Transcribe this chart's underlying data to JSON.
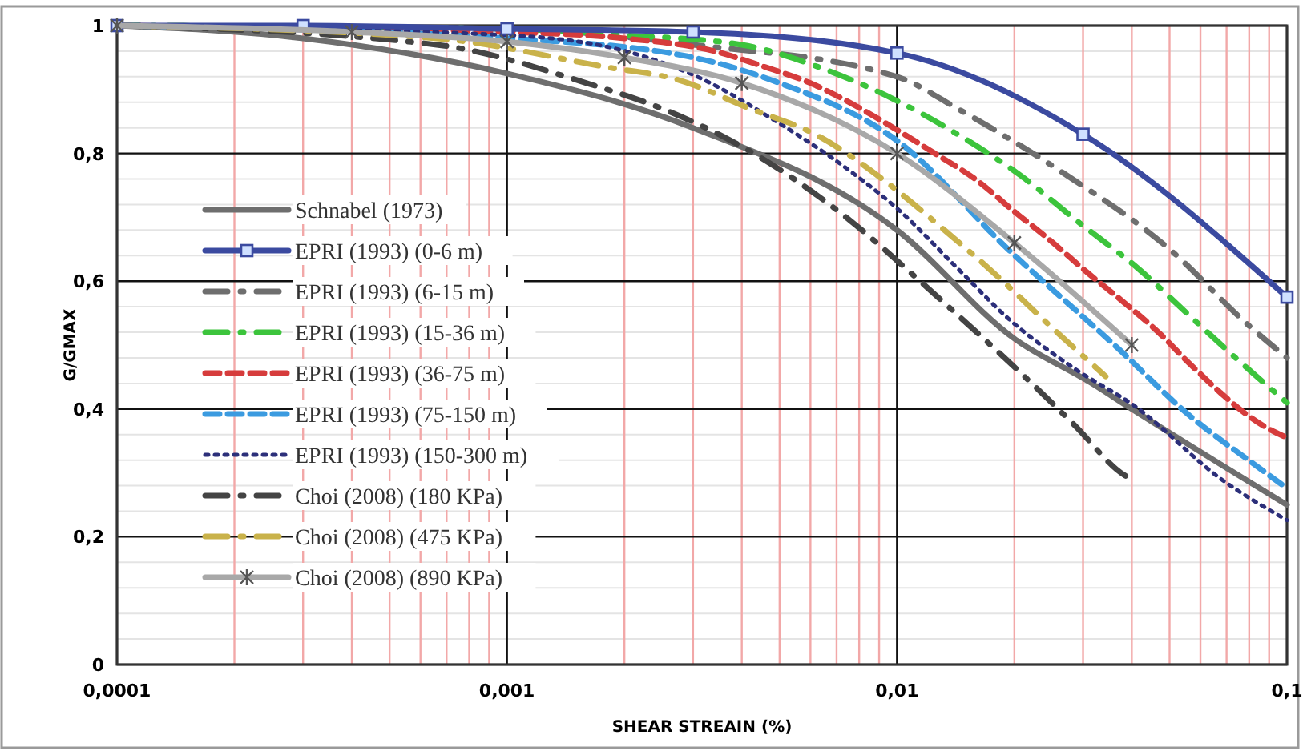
{
  "chart_data": {
    "type": "line",
    "xlabel": "SHEAR STREAIN (%)",
    "ylabel": "G/GMAX",
    "log": "x",
    "grid": true,
    "legend": "left",
    "xlim": [
      0.0001,
      0.1
    ],
    "xticks": [
      {
        "value": 0.0001,
        "label": "0,0001"
      },
      {
        "value": 0.0002,
        "label": null
      },
      {
        "value": 0.0003,
        "label": null
      },
      {
        "value": 0.0004,
        "label": null
      },
      {
        "value": 0.0005,
        "label": null
      },
      {
        "value": 0.0006,
        "label": null
      },
      {
        "value": 0.0007,
        "label": null
      },
      {
        "value": 0.0008,
        "label": null
      },
      {
        "value": 0.0009,
        "label": null
      },
      {
        "value": 0.001,
        "label": "0,001"
      },
      {
        "value": 0.002,
        "label": null
      },
      {
        "value": 0.003,
        "label": null
      },
      {
        "value": 0.004,
        "label": null
      },
      {
        "value": 0.005,
        "label": null
      },
      {
        "value": 0.006,
        "label": null
      },
      {
        "value": 0.007,
        "label": null
      },
      {
        "value": 0.008,
        "label": null
      },
      {
        "value": 0.009,
        "label": null
      },
      {
        "value": 0.01,
        "label": "0,01"
      },
      {
        "value": 0.02,
        "label": null
      },
      {
        "value": 0.03,
        "label": null
      },
      {
        "value": 0.04,
        "label": null
      },
      {
        "value": 0.05,
        "label": null
      },
      {
        "value": 0.06,
        "label": null
      },
      {
        "value": 0.07,
        "label": null
      },
      {
        "value": 0.08,
        "label": null
      },
      {
        "value": 0.09,
        "label": null
      },
      {
        "value": 0.1,
        "label": "0,1"
      }
    ],
    "ylim": [
      0,
      1
    ],
    "yticks": [
      0,
      {
        "value": 0.04,
        "label": null
      },
      {
        "value": 0.08,
        "label": null
      },
      {
        "value": 0.12,
        "label": null
      },
      {
        "value": 0.16,
        "label": null
      },
      {
        "value": 0.2,
        "label": "0,2"
      },
      {
        "value": 0.24,
        "label": null
      },
      {
        "value": 0.28,
        "label": null
      },
      {
        "value": 0.32,
        "label": null
      },
      {
        "value": 0.36,
        "label": null
      },
      {
        "value": 0.4,
        "label": "0,4"
      },
      {
        "value": 0.44,
        "label": null
      },
      {
        "value": 0.48,
        "label": null
      },
      {
        "value": 0.52,
        "label": null
      },
      {
        "value": 0.56,
        "label": null
      },
      {
        "value": 0.6,
        "label": "0,6"
      },
      {
        "value": 0.64,
        "label": null
      },
      {
        "value": 0.68,
        "label": null
      },
      {
        "value": 0.72,
        "label": null
      },
      {
        "value": 0.76,
        "label": null
      },
      {
        "value": 0.8,
        "label": "0,8"
      },
      {
        "value": 0.84,
        "label": null
      },
      {
        "value": 0.88,
        "label": null
      },
      {
        "value": 0.92,
        "label": null
      },
      {
        "value": 0.96,
        "label": null
      },
      1
    ],
    "series": [
      {
        "name": "Schnabel (1973)",
        "color": "#6e6e6e",
        "line_style": "solid",
        "marker": "none",
        "x": [
          0.0001,
          0.0003,
          0.001,
          0.003,
          0.01,
          0.02,
          0.0316,
          0.04,
          0.1
        ],
        "values": [
          1,
          0.98,
          0.925,
          0.84,
          0.68,
          0.51,
          0.44,
          0.4,
          0.25
        ]
      },
      {
        "name": "EPRI (1993) (0-6 m)",
        "color": "#3b4aa0",
        "line_style": "solid",
        "marker": "square",
        "x": [
          0.0001,
          0.0003,
          0.001,
          0.003,
          0.01,
          0.03,
          0.1
        ],
        "values": [
          1,
          1,
          0.995,
          0.99,
          0.957,
          0.83,
          0.575
        ]
      },
      {
        "name": "EPRI (1993) (6-15 m)",
        "color": "#6e6e6e",
        "line_style": "dashdot",
        "marker": "none",
        "x": [
          0.0001,
          0.001,
          0.003,
          0.01,
          0.0143,
          0.0266,
          0.05,
          0.08,
          0.1
        ],
        "values": [
          1,
          0.995,
          0.97,
          0.92,
          0.87,
          0.77,
          0.65,
          0.53,
          0.48
        ]
      },
      {
        "name": "EPRI (1993) (15-36 m)",
        "color": "#3cc43c",
        "line_style": "dashdot",
        "marker": "none",
        "x": [
          0.0001,
          0.001,
          0.002,
          0.004,
          0.0063,
          0.0098,
          0.0143,
          0.0208,
          0.029,
          0.0415,
          0.0567,
          0.079,
          0.1
        ],
        "values": [
          1,
          0.995,
          0.985,
          0.97,
          0.935,
          0.885,
          0.83,
          0.765,
          0.694,
          0.62,
          0.544,
          0.464,
          0.41
        ]
      },
      {
        "name": "EPRI (1993) (36-75 m)",
        "color": "#d63c3c",
        "line_style": "dashed",
        "marker": "none",
        "x": [
          0.0001,
          0.001,
          0.002,
          0.0034,
          0.0046,
          0.006,
          0.0077,
          0.0098,
          0.0125,
          0.0161,
          0.0199,
          0.0247,
          0.0307,
          0.0378,
          0.047,
          0.0567,
          0.0885,
          0.1
        ],
        "values": [
          1,
          0.99,
          0.98,
          0.96,
          0.935,
          0.91,
          0.877,
          0.84,
          0.8,
          0.757,
          0.71,
          0.664,
          0.614,
          0.569,
          0.519,
          0.469,
          0.371,
          0.355
        ]
      },
      {
        "name": "EPRI (1993) (75-150 m)",
        "color": "#3b9be0",
        "line_style": "dashed",
        "marker": "none",
        "x": [
          0.0001,
          0.001,
          0.0029,
          0.005,
          0.01,
          0.0195,
          0.0367,
          0.0567,
          0.0805,
          0.1
        ],
        "values": [
          1,
          0.98,
          0.952,
          0.91,
          0.82,
          0.647,
          0.496,
          0.388,
          0.318,
          0.276
        ]
      },
      {
        "name": "EPRI (1993) (150-300 m)",
        "color": "#2c2f7a",
        "line_style": "dotted",
        "marker": "none",
        "x": [
          0.0001,
          0.001,
          0.0021,
          0.0032,
          0.0047,
          0.0076,
          0.01,
          0.0143,
          0.0195,
          0.0284,
          0.0404,
          0.0686,
          0.1
        ],
        "values": [
          1,
          0.985,
          0.957,
          0.915,
          0.857,
          0.772,
          0.714,
          0.62,
          0.539,
          0.464,
          0.406,
          0.288,
          0.226
        ]
      },
      {
        "name": "Choi (2008) (180 KPa)",
        "color": "#444444",
        "line_style": "dashdot",
        "marker": "none",
        "x": [
          0.0001,
          0.00066,
          0.0016,
          0.0025,
          0.0037,
          0.0078,
          0.0108,
          0.0151,
          0.0208,
          0.0284,
          0.0384,
          0.04
        ],
        "values": [
          1,
          0.97,
          0.91,
          0.87,
          0.822,
          0.689,
          0.614,
          0.534,
          0.456,
          0.376,
          0.296,
          0.29
        ]
      },
      {
        "name": "Choi (2008) (475 KPa)",
        "color": "#c9b24a",
        "line_style": "dashdot",
        "marker": "none",
        "x": [
          0.0001,
          0.00066,
          0.0018,
          0.00275,
          0.0042,
          0.0063,
          0.0093,
          0.013,
          0.018,
          0.0251,
          0.0343
        ],
        "values": [
          1,
          0.98,
          0.935,
          0.915,
          0.87,
          0.827,
          0.757,
          0.684,
          0.609,
          0.526,
          0.451
        ]
      },
      {
        "name": "Choi (2008) (890 KPa)",
        "color": "#a8a8a8",
        "line_style": "solid",
        "marker": "cross",
        "x": [
          0.0001,
          0.0004,
          0.001,
          0.002,
          0.004,
          0.01,
          0.02,
          0.04
        ],
        "values": [
          1,
          0.99,
          0.975,
          0.95,
          0.91,
          0.8,
          0.66,
          0.5
        ]
      }
    ]
  }
}
